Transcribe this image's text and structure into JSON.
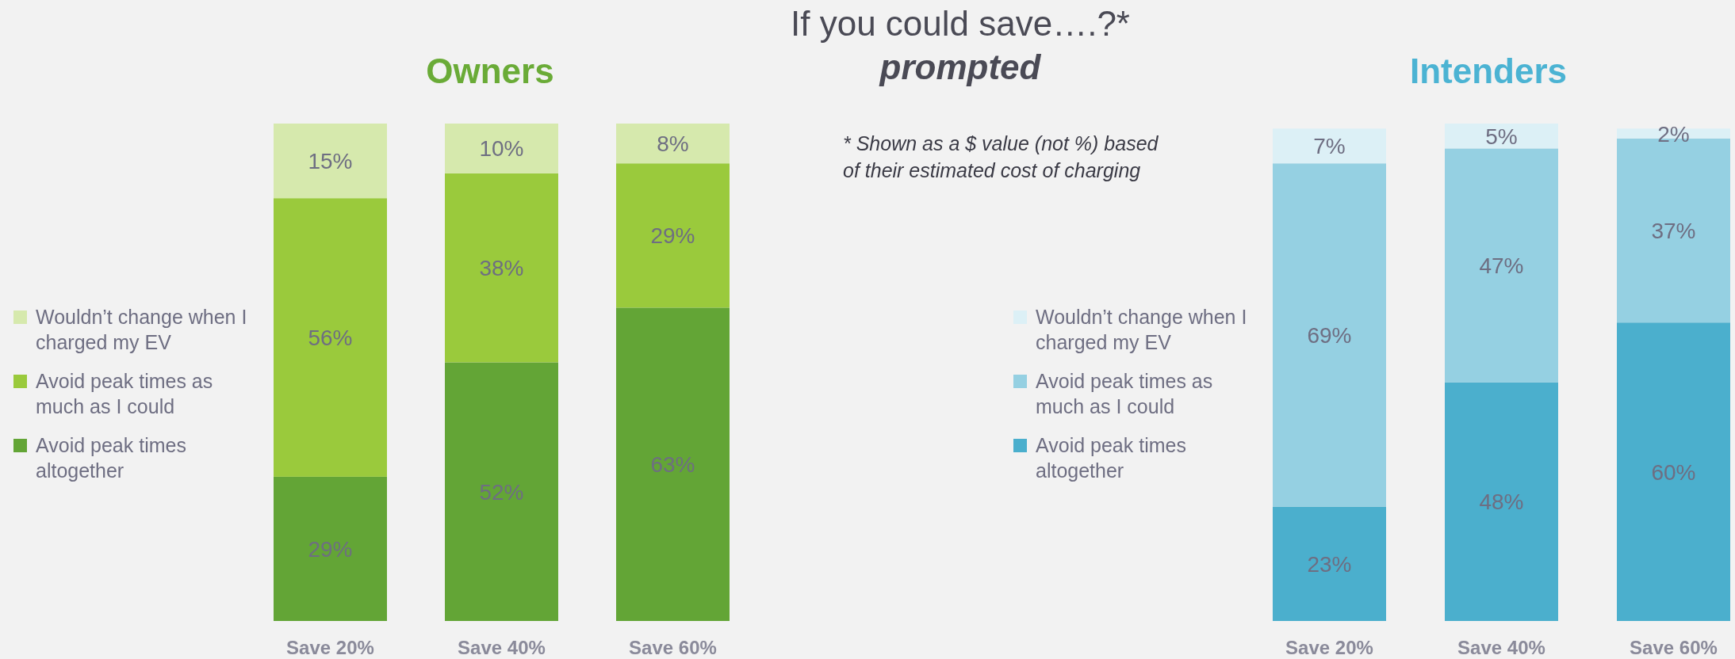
{
  "chart_data": [
    {
      "type": "other",
      "title": "If you could save….?*",
      "subtitle": "prompted",
      "annotations": [
        "* Shown as a $ value (not %) based",
        "of their estimated cost of charging"
      ]
    },
    {
      "type": "bar",
      "title": "Owners",
      "stacked": true,
      "legend": "left",
      "categories": [
        "Save 20%",
        "Save 40%",
        "Save 60%"
      ],
      "series": [
        {
          "name": "Avoid peak times altogether",
          "color": "#63a536",
          "values": [
            29,
            52,
            63
          ],
          "value_labels": [
            "29%",
            "52%",
            "63%"
          ]
        },
        {
          "name": "Avoid peak times as much as I could",
          "color": "#9aca3c",
          "values": [
            56,
            38,
            29
          ],
          "value_labels": [
            "56%",
            "38%",
            "29%"
          ]
        },
        {
          "name": "Wouldn’t change when I charged my EV",
          "color": "#d6e9ad",
          "values": [
            15,
            10,
            8
          ],
          "value_labels": [
            "15%",
            "10%",
            "8%"
          ]
        }
      ]
    },
    {
      "type": "bar",
      "title": "Intenders",
      "stacked": true,
      "legend": "left",
      "categories": [
        "Save 20%",
        "Save 40%",
        "Save 60%"
      ],
      "series": [
        {
          "name": "Avoid peak times altogether",
          "color": "#4bafcd",
          "values": [
            23,
            48,
            60
          ],
          "value_labels": [
            "23%",
            "48%",
            "60%"
          ]
        },
        {
          "name": "Avoid peak times as much as I could",
          "color": "#95d0e2",
          "values": [
            69,
            47,
            37
          ],
          "value_labels": [
            "69%",
            "47%",
            "37%"
          ]
        },
        {
          "name": "Wouldn’t change when I charged my EV",
          "color": "#dcf0f6",
          "values": [
            7,
            5,
            2
          ],
          "value_labels": [
            "7%",
            "5%",
            "2%"
          ]
        }
      ]
    }
  ]
}
